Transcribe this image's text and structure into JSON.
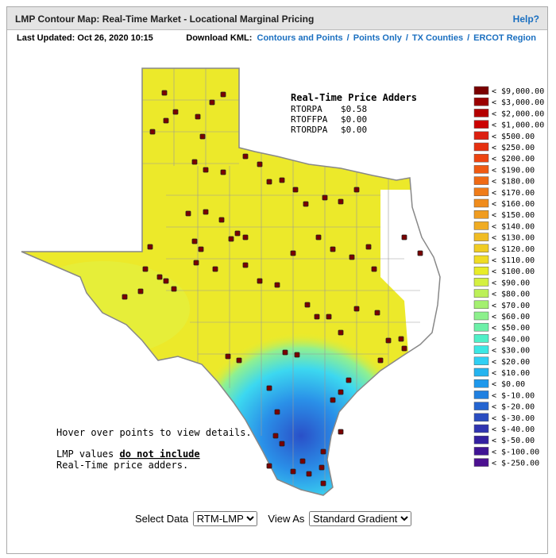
{
  "header": {
    "title": "LMP Contour Map: Real-Time Market - Locational Marginal Pricing",
    "help": "Help?"
  },
  "toolbar": {
    "last_updated": "Last Updated: Oct 26, 2020 10:15",
    "download_label": "Download KML:",
    "links": [
      "Contours and Points",
      "Points Only",
      "TX Counties",
      "ERCOT Region"
    ],
    "separator": "/"
  },
  "adders": {
    "title": "Real-Time Price Adders",
    "rows": [
      [
        "RTORPA",
        "$0.58"
      ],
      [
        "RTOFFPA",
        "$0.00"
      ],
      [
        "RTORDPA",
        "$0.00"
      ]
    ]
  },
  "legend": {
    "entries": [
      {
        "label": "< $9,000.00",
        "color": "#7a0000"
      },
      {
        "label": "< $3,000.00",
        "color": "#9a0000"
      },
      {
        "label": "< $2,000.00",
        "color": "#b40000"
      },
      {
        "label": "< $1,000.00",
        "color": "#cc0000"
      },
      {
        "label": "< $500.00",
        "color": "#dc2010"
      },
      {
        "label": "< $250.00",
        "color": "#e63010"
      },
      {
        "label": "< $200.00",
        "color": "#ee4410"
      },
      {
        "label": "< $190.00",
        "color": "#f05a12"
      },
      {
        "label": "< $180.00",
        "color": "#f06a14"
      },
      {
        "label": "< $170.00",
        "color": "#f07c18"
      },
      {
        "label": "< $160.00",
        "color": "#f08c1c"
      },
      {
        "label": "< $150.00",
        "color": "#f09c20"
      },
      {
        "label": "< $140.00",
        "color": "#f0ac22"
      },
      {
        "label": "< $130.00",
        "color": "#f0bc24"
      },
      {
        "label": "< $120.00",
        "color": "#f0cc24"
      },
      {
        "label": "< $110.00",
        "color": "#f0dc24"
      },
      {
        "label": "< $100.00",
        "color": "#e8ec28"
      },
      {
        "label": "< $90.00",
        "color": "#d4f040"
      },
      {
        "label": "< $80.00",
        "color": "#bcf058"
      },
      {
        "label": "< $70.00",
        "color": "#a4f070"
      },
      {
        "label": "< $60.00",
        "color": "#8cf08c"
      },
      {
        "label": "< $50.00",
        "color": "#6cf0a8"
      },
      {
        "label": "< $40.00",
        "color": "#50f0c8"
      },
      {
        "label": "< $30.00",
        "color": "#3ce8e4"
      },
      {
        "label": "< $20.00",
        "color": "#30d0f4"
      },
      {
        "label": "< $10.00",
        "color": "#24b4f0"
      },
      {
        "label": "< $0.00",
        "color": "#1e98ec"
      },
      {
        "label": "< $-10.00",
        "color": "#2080e0"
      },
      {
        "label": "< $-20.00",
        "color": "#2464d0"
      },
      {
        "label": "< $-30.00",
        "color": "#2a4cc0"
      },
      {
        "label": "< $-40.00",
        "color": "#3034b0"
      },
      {
        "label": "< $-50.00",
        "color": "#3420a0"
      },
      {
        "label": "< $-100.00",
        "color": "#401494"
      },
      {
        "label": "< $-250.00",
        "color": "#4c1090"
      }
    ]
  },
  "notes": {
    "hover": "Hover over points to view details.",
    "lmp_prefix": "LMP values",
    "lmp_emphasis": "do not include",
    "lmp_suffix": "Real-Time price adders."
  },
  "controls": {
    "select_data_label": "Select Data",
    "select_data_options": [
      "RTM-LMP"
    ],
    "view_as_label": "View As",
    "view_as_options": [
      "Standard Gradient"
    ]
  }
}
